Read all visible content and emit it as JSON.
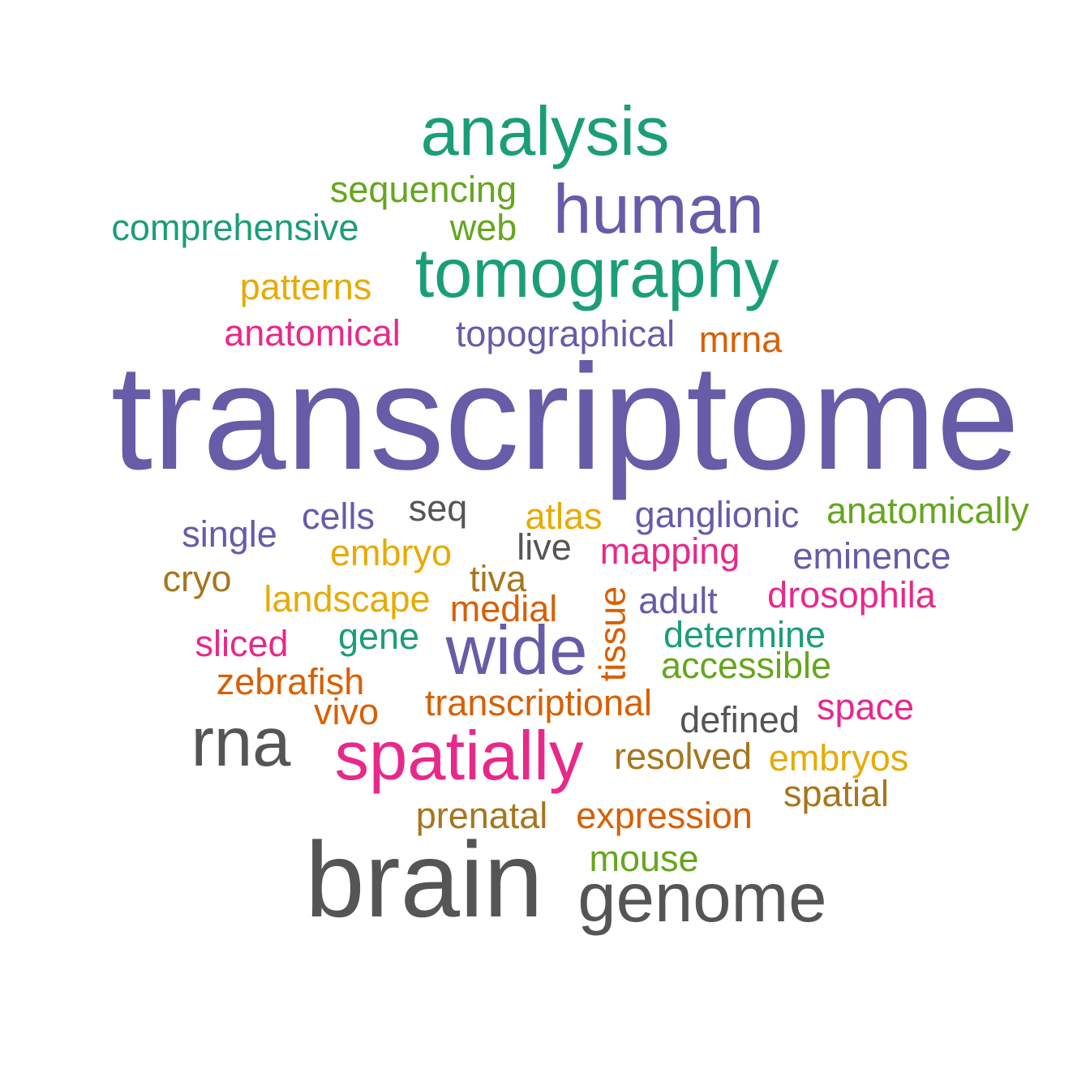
{
  "colors": {
    "teal": "#1b9e77",
    "purple": "#665ca8",
    "orange": "#d95f02",
    "magenta": "#e7298a",
    "green": "#66a61e",
    "gold": "#e6ab02",
    "brown": "#a6761d",
    "gray": "#555555"
  },
  "words": [
    {
      "text": "transcriptome",
      "color": "purple"
    },
    {
      "text": "brain",
      "color": "gray"
    },
    {
      "text": "analysis",
      "color": "teal"
    },
    {
      "text": "tomography",
      "color": "teal"
    },
    {
      "text": "human",
      "color": "purple"
    },
    {
      "text": "wide",
      "color": "purple"
    },
    {
      "text": "spatially",
      "color": "magenta"
    },
    {
      "text": "rna",
      "color": "gray"
    },
    {
      "text": "genome",
      "color": "gray"
    },
    {
      "text": "sequencing",
      "color": "green"
    },
    {
      "text": "comprehensive",
      "color": "teal"
    },
    {
      "text": "web",
      "color": "green"
    },
    {
      "text": "patterns",
      "color": "gold"
    },
    {
      "text": "anatomical",
      "color": "magenta"
    },
    {
      "text": "topographical",
      "color": "purple"
    },
    {
      "text": "mrna",
      "color": "orange"
    },
    {
      "text": "single",
      "color": "purple"
    },
    {
      "text": "cells",
      "color": "purple"
    },
    {
      "text": "seq",
      "color": "gray"
    },
    {
      "text": "atlas",
      "color": "gold"
    },
    {
      "text": "ganglionic",
      "color": "purple"
    },
    {
      "text": "anatomically",
      "color": "green"
    },
    {
      "text": "embryo",
      "color": "gold"
    },
    {
      "text": "live",
      "color": "gray"
    },
    {
      "text": "mapping",
      "color": "magenta"
    },
    {
      "text": "eminence",
      "color": "purple"
    },
    {
      "text": "cryo",
      "color": "brown"
    },
    {
      "text": "tiva",
      "color": "brown"
    },
    {
      "text": "landscape",
      "color": "gold"
    },
    {
      "text": "medial",
      "color": "orange"
    },
    {
      "text": "tissue",
      "color": "orange"
    },
    {
      "text": "adult",
      "color": "purple"
    },
    {
      "text": "drosophila",
      "color": "magenta"
    },
    {
      "text": "sliced",
      "color": "magenta"
    },
    {
      "text": "gene",
      "color": "teal"
    },
    {
      "text": "determine",
      "color": "teal"
    },
    {
      "text": "accessible",
      "color": "green"
    },
    {
      "text": "zebrafish",
      "color": "orange"
    },
    {
      "text": "vivo",
      "color": "orange"
    },
    {
      "text": "transcriptional",
      "color": "orange"
    },
    {
      "text": "defined",
      "color": "gray"
    },
    {
      "text": "space",
      "color": "magenta"
    },
    {
      "text": "resolved",
      "color": "brown"
    },
    {
      "text": "embryos",
      "color": "gold"
    },
    {
      "text": "spatial",
      "color": "brown"
    },
    {
      "text": "prenatal",
      "color": "brown"
    },
    {
      "text": "expression",
      "color": "orange"
    },
    {
      "text": "mouse",
      "color": "green"
    }
  ]
}
